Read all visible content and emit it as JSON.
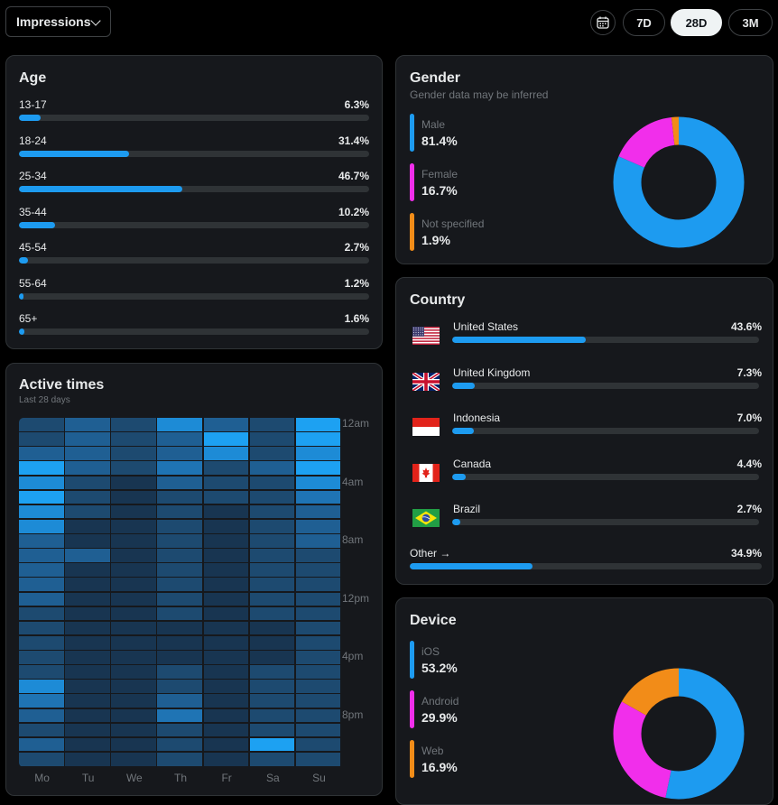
{
  "toolbar": {
    "metric_label": "Impressions",
    "ranges": [
      {
        "label": "7D",
        "active": false
      },
      {
        "label": "28D",
        "active": true
      },
      {
        "label": "3M",
        "active": false
      }
    ]
  },
  "age": {
    "title": "Age",
    "rows": [
      {
        "label": "13-17",
        "value": "6.3%",
        "pct": 6.3
      },
      {
        "label": "18-24",
        "value": "31.4%",
        "pct": 31.4
      },
      {
        "label": "25-34",
        "value": "46.7%",
        "pct": 46.7
      },
      {
        "label": "35-44",
        "value": "10.2%",
        "pct": 10.2
      },
      {
        "label": "45-54",
        "value": "2.7%",
        "pct": 2.7
      },
      {
        "label": "55-64",
        "value": "1.2%",
        "pct": 1.2
      },
      {
        "label": "65+",
        "value": "1.6%",
        "pct": 1.6
      }
    ]
  },
  "gender": {
    "title": "Gender",
    "subtitle": "Gender data may be inferred",
    "items": [
      {
        "label": "Male",
        "value": "81.4%",
        "pct": 81.4,
        "color": "#1d9bf0"
      },
      {
        "label": "Female",
        "value": "16.7%",
        "pct": 16.7,
        "color": "#f12eeb"
      },
      {
        "label": "Not specified",
        "value": "1.9%",
        "pct": 1.9,
        "color": "#f28c18"
      }
    ]
  },
  "country": {
    "title": "Country",
    "rows": [
      {
        "label": "United States",
        "value": "43.6%",
        "pct": 43.6,
        "flag": "us-flag"
      },
      {
        "label": "United Kingdom",
        "value": "7.3%",
        "pct": 7.3,
        "flag": "uk-flag"
      },
      {
        "label": "Indonesia",
        "value": "7.0%",
        "pct": 7.0,
        "flag": "indonesia-flag"
      },
      {
        "label": "Canada",
        "value": "4.4%",
        "pct": 4.4,
        "flag": "canada-flag"
      },
      {
        "label": "Brazil",
        "value": "2.7%",
        "pct": 2.7,
        "flag": "brazil-flag"
      }
    ],
    "other": {
      "label": "Other →",
      "value": "34.9%",
      "pct": 34.9
    }
  },
  "active_times": {
    "title": "Active times",
    "subtitle": "Last 28 days",
    "days": [
      "Mo",
      "Tu",
      "We",
      "Th",
      "Fr",
      "Sa",
      "Su"
    ],
    "time_labels": [
      "12am",
      "4am",
      "8am",
      "12pm",
      "4pm",
      "8pm"
    ],
    "intensity": [
      [
        2,
        3,
        2,
        5,
        3,
        2,
        6
      ],
      [
        2,
        3,
        2,
        3,
        6,
        2,
        6
      ],
      [
        3,
        3,
        2,
        3,
        5,
        2,
        5
      ],
      [
        6,
        3,
        2,
        4,
        2,
        3,
        6
      ],
      [
        5,
        2,
        1,
        3,
        2,
        2,
        5
      ],
      [
        6,
        2,
        1,
        2,
        2,
        2,
        4
      ],
      [
        5,
        2,
        1,
        2,
        1,
        2,
        3
      ],
      [
        5,
        1,
        1,
        2,
        1,
        2,
        3
      ],
      [
        3,
        1,
        1,
        2,
        1,
        2,
        3
      ],
      [
        3,
        3,
        1,
        2,
        1,
        2,
        2
      ],
      [
        3,
        1,
        1,
        2,
        1,
        2,
        2
      ],
      [
        3,
        1,
        1,
        2,
        1,
        2,
        2
      ],
      [
        3,
        1,
        1,
        2,
        1,
        2,
        2
      ],
      [
        2,
        1,
        1,
        2,
        1,
        2,
        2
      ],
      [
        2,
        1,
        1,
        1,
        1,
        1,
        2
      ],
      [
        2,
        1,
        1,
        1,
        1,
        1,
        2
      ],
      [
        2,
        1,
        1,
        1,
        1,
        1,
        2
      ],
      [
        2,
        1,
        1,
        2,
        1,
        2,
        2
      ],
      [
        5,
        1,
        1,
        2,
        1,
        2,
        2
      ],
      [
        4,
        1,
        1,
        3,
        1,
        2,
        2
      ],
      [
        3,
        1,
        1,
        4,
        1,
        2,
        2
      ],
      [
        2,
        1,
        1,
        2,
        1,
        2,
        2
      ],
      [
        3,
        1,
        1,
        2,
        1,
        6,
        2
      ],
      [
        2,
        1,
        1,
        2,
        1,
        2,
        2
      ]
    ]
  },
  "device": {
    "title": "Device",
    "items": [
      {
        "label": "iOS",
        "value": "53.2%",
        "pct": 53.2,
        "color": "#1d9bf0"
      },
      {
        "label": "Android",
        "value": "29.9%",
        "pct": 29.9,
        "color": "#f12eeb"
      },
      {
        "label": "Web",
        "value": "16.9%",
        "pct": 16.9,
        "color": "#f28c18"
      }
    ]
  }
}
